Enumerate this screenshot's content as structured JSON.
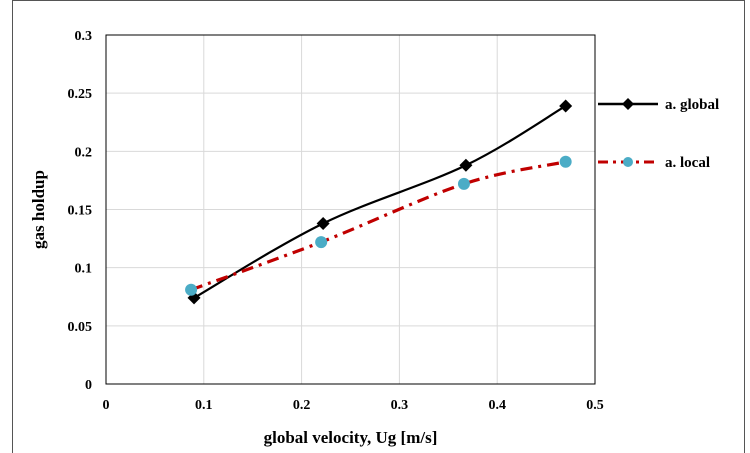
{
  "chart_data": {
    "type": "line",
    "title": "",
    "xlabel": "global velocity, Ug [m/s]",
    "ylabel": "gas holdup",
    "xlim": [
      0,
      0.5
    ],
    "ylim": [
      0,
      0.3
    ],
    "x_ticks": [
      "0",
      "0.1",
      "0.2",
      "0.3",
      "0.4",
      "0.5"
    ],
    "y_ticks": [
      "0",
      "0.05",
      "0.1",
      "0.15",
      "0.2",
      "0.25",
      "0.3"
    ],
    "grid": true,
    "legend_position": "right",
    "series": [
      {
        "name": "a. global",
        "color": "#000000",
        "marker": "diamond",
        "line_style": "solid-smooth",
        "points": [
          {
            "x": 0.09,
            "y": 0.074
          },
          {
            "x": 0.222,
            "y": 0.138
          },
          {
            "x": 0.368,
            "y": 0.188
          },
          {
            "x": 0.47,
            "y": 0.239
          }
        ]
      },
      {
        "name": "a. local",
        "color": "#c00000",
        "marker_color": "#4bacc6",
        "marker": "circle",
        "line_style": "dash-dot",
        "points": [
          {
            "x": 0.087,
            "y": 0.081
          },
          {
            "x": 0.22,
            "y": 0.122
          },
          {
            "x": 0.366,
            "y": 0.172
          },
          {
            "x": 0.47,
            "y": 0.191
          }
        ]
      }
    ]
  }
}
